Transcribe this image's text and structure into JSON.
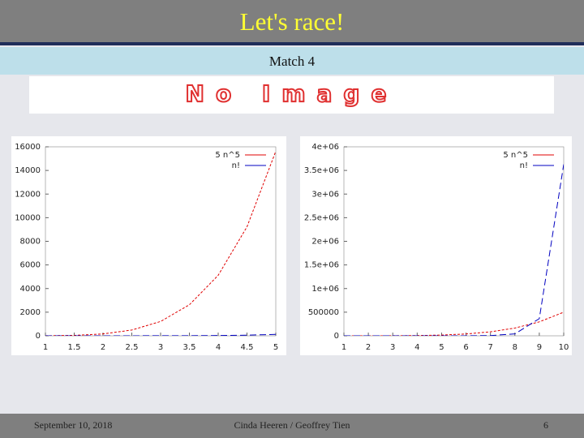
{
  "slide": {
    "title": "Let's race!",
    "subtitle": "Match 4",
    "image_placeholder": "No Image",
    "footer": {
      "date": "September 10, 2018",
      "authors": "Cinda Heeren / Geoffrey Tien",
      "page": "6"
    }
  },
  "chart_data": [
    {
      "type": "line",
      "x": [
        1,
        1.5,
        2,
        2.5,
        3,
        3.5,
        4,
        4.5,
        5
      ],
      "series": [
        {
          "name": "5 n^5",
          "color": "#e00000",
          "values": [
            5,
            37.97,
            160,
            488.28,
            1215,
            2626.09,
            5120,
            9226.41,
            15625
          ]
        },
        {
          "name": "n!",
          "color": "#0000c0",
          "values": [
            1,
            1.33,
            2,
            3.32,
            6,
            11.63,
            24,
            52.34,
            120
          ]
        }
      ],
      "xlim": [
        1,
        5
      ],
      "xticks": [
        1,
        1.5,
        2,
        2.5,
        3,
        3.5,
        4,
        4.5,
        5
      ],
      "ylim": [
        0,
        16000
      ],
      "yticks": [
        0,
        2000,
        4000,
        6000,
        8000,
        10000,
        12000,
        14000,
        16000
      ],
      "legend": "top-right"
    },
    {
      "type": "line",
      "x": [
        1,
        2,
        3,
        4,
        5,
        6,
        7,
        8,
        9,
        10
      ],
      "series": [
        {
          "name": "5 n^5",
          "color": "#e00000",
          "values": [
            5,
            160,
            1215,
            5120,
            15625,
            38880,
            84035,
            163840,
            295245,
            500000
          ]
        },
        {
          "name": "n!",
          "color": "#0000c0",
          "values": [
            1,
            2,
            6,
            24,
            120,
            720,
            5040,
            40320,
            362880,
            3628800
          ]
        }
      ],
      "xlim": [
        1,
        10
      ],
      "xticks": [
        1,
        2,
        3,
        4,
        5,
        6,
        7,
        8,
        9,
        10
      ],
      "ylim": [
        0,
        4000000
      ],
      "yticks": [
        0,
        500000,
        {
          "value": 1000000,
          "label": "1e+06"
        },
        {
          "value": 1500000,
          "label": "1.5e+06"
        },
        {
          "value": 2000000,
          "label": "2e+06"
        },
        {
          "value": 2500000,
          "label": "2.5e+06"
        },
        {
          "value": 3000000,
          "label": "3e+06"
        },
        {
          "value": 3500000,
          "label": "3.5e+06"
        },
        {
          "value": 4000000,
          "label": "4e+06"
        }
      ],
      "legend": "top-right"
    }
  ]
}
